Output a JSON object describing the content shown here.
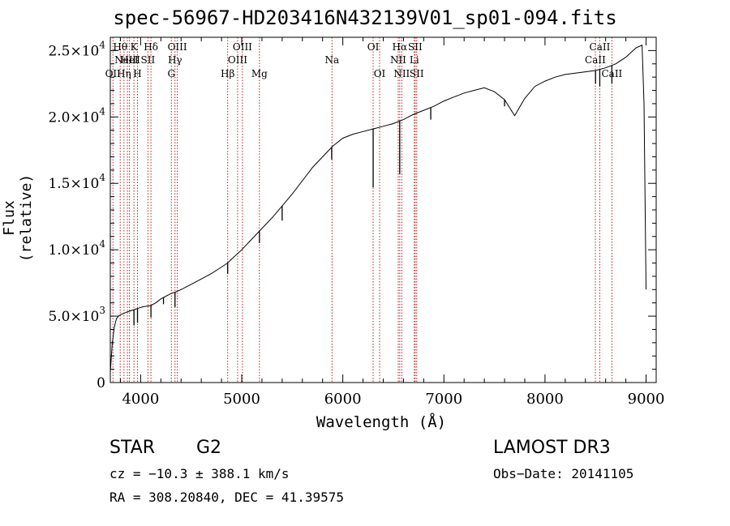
{
  "chart_data": {
    "type": "line",
    "title": "spec-56967-HD203416N432139V01_sp01-094.fits",
    "xlabel": "Wavelength (Å)",
    "ylabel": "Flux (relative)",
    "xlim": [
      3700,
      9100
    ],
    "ylim": [
      0,
      26000
    ],
    "x_ticks": [
      4000,
      5000,
      6000,
      7000,
      8000,
      9000
    ],
    "x_tick_labels": [
      "4000",
      "5000",
      "6000",
      "7000",
      "8000",
      "9000"
    ],
    "y_ticks": [
      0,
      5000,
      10000,
      15000,
      20000,
      25000
    ],
    "y_tick_labels": [
      {
        "mant": "0",
        "exp": ""
      },
      {
        "mant": "5.0×10",
        "exp": "3"
      },
      {
        "mant": "1.0×10",
        "exp": "4"
      },
      {
        "mant": "1.5×10",
        "exp": "4"
      },
      {
        "mant": "2.0×10",
        "exp": "4"
      },
      {
        "mant": "2.5×10",
        "exp": "4"
      }
    ],
    "series": [
      {
        "name": "flux",
        "x": [
          3700,
          3720,
          3740,
          3760,
          3780,
          3800,
          3830,
          3860,
          3900,
          3940,
          3980,
          4020,
          4060,
          4100,
          4150,
          4200,
          4250,
          4300,
          4340,
          4400,
          4500,
          4600,
          4700,
          4800,
          4860,
          4900,
          5000,
          5100,
          5200,
          5300,
          5400,
          5500,
          5600,
          5700,
          5800,
          5900,
          6000,
          6100,
          6200,
          6300,
          6400,
          6500,
          6563,
          6600,
          6700,
          6800,
          6900,
          7000,
          7100,
          7200,
          7300,
          7400,
          7500,
          7600,
          7700,
          7800,
          7900,
          8000,
          8100,
          8200,
          8300,
          8400,
          8500,
          8600,
          8700,
          8800,
          8900,
          8960,
          8980,
          9000
        ],
        "y": [
          800,
          3000,
          4200,
          4800,
          5000,
          5100,
          5200,
          5300,
          5400,
          5500,
          5600,
          5700,
          5750,
          5800,
          6000,
          6300,
          6500,
          6700,
          6800,
          7000,
          7400,
          7800,
          8200,
          8700,
          9000,
          9300,
          10000,
          10800,
          11600,
          12400,
          13300,
          14200,
          15200,
          16200,
          17000,
          17800,
          18400,
          18700,
          18900,
          19100,
          19300,
          19500,
          19700,
          19800,
          20200,
          20500,
          20800,
          21200,
          21500,
          21800,
          22000,
          22200,
          21900,
          21300,
          20100,
          21400,
          22300,
          22700,
          23000,
          23200,
          23300,
          23400,
          23500,
          23700,
          24000,
          24500,
          25200,
          25400,
          21000,
          7000
        ]
      }
    ],
    "absorption_dips": [
      {
        "x": 3934,
        "y": 4300
      },
      {
        "x": 3969,
        "y": 4500
      },
      {
        "x": 4102,
        "y": 4900
      },
      {
        "x": 4226,
        "y": 5900
      },
      {
        "x": 4340,
        "y": 5700
      },
      {
        "x": 4861,
        "y": 8200
      },
      {
        "x": 5175,
        "y": 10500
      },
      {
        "x": 5400,
        "y": 12200
      },
      {
        "x": 5890,
        "y": 16800
      },
      {
        "x": 6300,
        "y": 14700
      },
      {
        "x": 6563,
        "y": 15700
      },
      {
        "x": 6870,
        "y": 19800
      },
      {
        "x": 7600,
        "y": 20800
      },
      {
        "x": 8500,
        "y": 22500
      },
      {
        "x": 8542,
        "y": 22300
      },
      {
        "x": 8662,
        "y": 22500
      }
    ],
    "line_markers": [
      {
        "x": 3726,
        "row": 2,
        "label": "OII"
      },
      {
        "x": 3798,
        "row": 0,
        "label": "Hθ"
      },
      {
        "x": 3835,
        "row": 2,
        "label": "Hη"
      },
      {
        "x": 3869,
        "row": 1,
        "label": "NeIII"
      },
      {
        "x": 3889,
        "row": 1,
        "label": "HeI"
      },
      {
        "x": 3934,
        "row": 0,
        "label": "K"
      },
      {
        "x": 3969,
        "row": 2,
        "label": "H"
      },
      {
        "x": 4072,
        "row": 1,
        "label": "SII"
      },
      {
        "x": 4102,
        "row": 0,
        "label": "Hδ"
      },
      {
        "x": 4304,
        "row": 2,
        "label": "G"
      },
      {
        "x": 4340,
        "row": 1,
        "label": "Hγ"
      },
      {
        "x": 4363,
        "row": 0,
        "label": "OIII"
      },
      {
        "x": 4861,
        "row": 2,
        "label": "Hβ"
      },
      {
        "x": 4959,
        "row": 1,
        "label": "OIII"
      },
      {
        "x": 5007,
        "row": 0,
        "label": "OIII"
      },
      {
        "x": 5175,
        "row": 2,
        "label": "Mg"
      },
      {
        "x": 5893,
        "row": 1,
        "label": "Na"
      },
      {
        "x": 6300,
        "row": 0,
        "label": "OI"
      },
      {
        "x": 6364,
        "row": 2,
        "label": "OI"
      },
      {
        "x": 6548,
        "row": 1,
        "label": "NII"
      },
      {
        "x": 6563,
        "row": 0,
        "label": "Hα"
      },
      {
        "x": 6583,
        "row": 2,
        "label": "NII"
      },
      {
        "x": 6707,
        "row": 1,
        "label": "Li"
      },
      {
        "x": 6716,
        "row": 0,
        "label": "SII"
      },
      {
        "x": 6731,
        "row": 2,
        "label": "SII"
      },
      {
        "x": 8498,
        "row": 1,
        "label": "CaII"
      },
      {
        "x": 8542,
        "row": 0,
        "label": "CaII"
      },
      {
        "x": 8662,
        "row": 2,
        "label": "CaII"
      }
    ],
    "colors": {
      "spectrum": "#000000",
      "marker": "#b22222",
      "axis": "#000000"
    }
  },
  "info": {
    "object_class": "STAR",
    "subclass": "G2",
    "survey": "LAMOST DR3",
    "cz": "cz = −10.3 ± 388.1 km/s",
    "obs_date": "Obs−Date: 20141105",
    "coords": "RA = 308.20840, DEC =  41.39575"
  }
}
